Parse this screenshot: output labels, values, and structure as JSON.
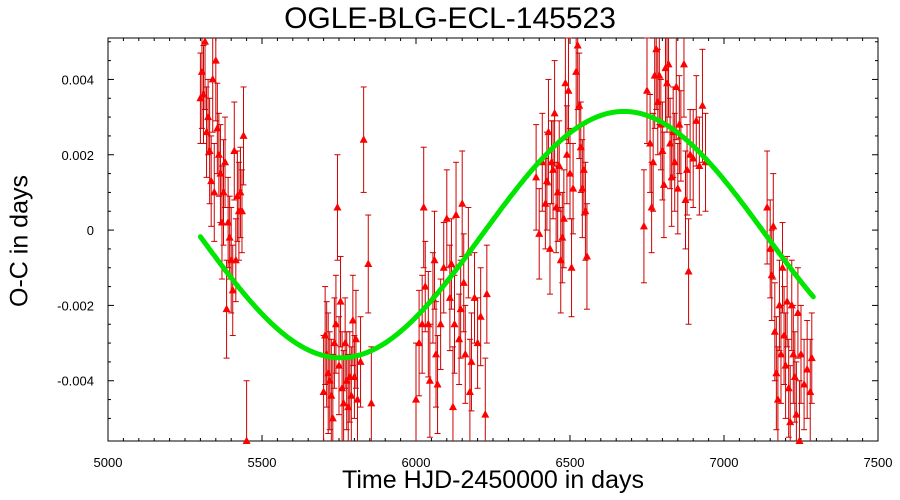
{
  "chart_data": {
    "type": "scatter",
    "title": "OGLE-BLG-ECL-145523",
    "xlabel": "Time HJD-2450000 in days",
    "ylabel": "O-C in days",
    "xlim": [
      5000,
      7500
    ],
    "ylim": [
      -0.0056,
      0.0051
    ],
    "xticks": [
      5000,
      5500,
      6000,
      6500,
      7000,
      7500
    ],
    "xtick_labels": [
      "5000",
      "5500",
      "6000",
      "6500",
      "7000",
      "7500"
    ],
    "yticks": [
      -0.004,
      -0.002,
      0,
      0.002,
      0.004
    ],
    "ytick_labels": [
      "-0.004",
      "-0.002",
      "0",
      "0.002",
      "0.004"
    ],
    "grid": false,
    "colors": {
      "points": "#ff0000",
      "errorbars": "#cc0000",
      "fit": "#00e600"
    },
    "series": [
      {
        "marker": "triangle",
        "points": [
          [
            5300,
            0.0035,
            0.0012
          ],
          [
            5305,
            0.0042,
            0.0015
          ],
          [
            5310,
            0.0036,
            0.0013
          ],
          [
            5315,
            0.005,
            0.0018
          ],
          [
            5320,
            0.0026,
            0.0012
          ],
          [
            5325,
            0.003,
            0.001
          ],
          [
            5330,
            0.0021,
            0.0014
          ],
          [
            5335,
            0.0013,
            0.0012
          ],
          [
            5340,
            0.004,
            0.0014
          ],
          [
            5345,
            0.001,
            0.0013
          ],
          [
            5350,
            0.0045,
            0.0016
          ],
          [
            5355,
            0.0027,
            0.0012
          ],
          [
            5360,
            0.002,
            0.0011
          ],
          [
            5365,
            0.0015,
            0.0013
          ],
          [
            5370,
            0.0002,
            0.0015
          ],
          [
            5375,
            0.001,
            0.0014
          ],
          [
            5380,
            0.0018,
            0.0012
          ],
          [
            5385,
            -0.0021,
            0.0013
          ],
          [
            5390,
            0.0002,
            0.0012
          ],
          [
            5395,
            -0.0002,
            0.0011
          ],
          [
            5400,
            -0.0008,
            0.0014
          ],
          [
            5405,
            -0.0016,
            0.0012
          ],
          [
            5410,
            0.0021,
            0.0013
          ],
          [
            5415,
            -0.0008,
            0.0011
          ],
          [
            5420,
            0.0009,
            0.0012
          ],
          [
            5425,
            0.0005,
            0.0013
          ],
          [
            5430,
            0.001,
            0.0012
          ],
          [
            5435,
            0.0005,
            0.0011
          ],
          [
            5440,
            0.0025,
            0.0013
          ],
          [
            5450,
            -0.0056,
            0.0016
          ],
          [
            5700,
            -0.0043,
            0.0015
          ],
          [
            5705,
            -0.0028,
            0.0013
          ],
          [
            5710,
            -0.0033,
            0.0014
          ],
          [
            5715,
            -0.0038,
            0.0016
          ],
          [
            5720,
            -0.004,
            0.0013
          ],
          [
            5725,
            -0.0044,
            0.0015
          ],
          [
            5730,
            -0.005,
            0.0017
          ],
          [
            5735,
            -0.003,
            0.0012
          ],
          [
            5740,
            -0.0025,
            0.0013
          ],
          [
            5745,
            0.0006,
            0.0014
          ],
          [
            5750,
            -0.0036,
            0.0013
          ],
          [
            5755,
            -0.0019,
            0.0012
          ],
          [
            5760,
            -0.0042,
            0.0015
          ],
          [
            5765,
            -0.0046,
            0.0014
          ],
          [
            5770,
            -0.003,
            0.0012
          ],
          [
            5775,
            -0.004,
            0.0013
          ],
          [
            5780,
            -0.0047,
            0.0014
          ],
          [
            5785,
            -0.0039,
            0.0012
          ],
          [
            5790,
            -0.0044,
            0.0013
          ],
          [
            5795,
            -0.0024,
            0.0012
          ],
          [
            5800,
            -0.0039,
            0.0011
          ],
          [
            5805,
            -0.0029,
            0.0013
          ],
          [
            5810,
            -0.0045,
            0.0012
          ],
          [
            5820,
            -0.0035,
            0.0012
          ],
          [
            5830,
            0.0024,
            0.0014
          ],
          [
            5845,
            -0.0009,
            0.0013
          ],
          [
            5855,
            -0.0046,
            0.0015
          ],
          [
            6000,
            -0.0045,
            0.0015
          ],
          [
            6010,
            -0.003,
            0.0014
          ],
          [
            6020,
            -0.0025,
            0.0013
          ],
          [
            6025,
            0.0006,
            0.0016
          ],
          [
            6030,
            -0.0015,
            0.0012
          ],
          [
            6040,
            -0.0025,
            0.0014
          ],
          [
            6045,
            -0.004,
            0.0015
          ],
          [
            6055,
            -0.0018,
            0.0012
          ],
          [
            6060,
            -0.0008,
            0.0013
          ],
          [
            6065,
            -0.0033,
            0.0014
          ],
          [
            6070,
            -0.0041,
            0.0013
          ],
          [
            6080,
            -0.0025,
            0.0012
          ],
          [
            6090,
            -0.001,
            0.0012
          ],
          [
            6100,
            0.0003,
            0.0013
          ],
          [
            6110,
            -0.0018,
            0.0014
          ],
          [
            6115,
            -0.0009,
            0.0012
          ],
          [
            6120,
            -0.0047,
            0.0016
          ],
          [
            6125,
            -0.0025,
            0.0013
          ],
          [
            6130,
            0.0004,
            0.0014
          ],
          [
            6140,
            -0.0029,
            0.0012
          ],
          [
            6145,
            -0.0021,
            0.0013
          ],
          [
            6150,
            0.0007,
            0.0014
          ],
          [
            6155,
            -0.0014,
            0.0013
          ],
          [
            6160,
            -0.0033,
            0.0013
          ],
          [
            6170,
            -0.0006,
            0.0012
          ],
          [
            6175,
            -0.0043,
            0.0014
          ],
          [
            6180,
            -0.0035,
            0.0013
          ],
          [
            6190,
            -0.0018,
            0.0012
          ],
          [
            6200,
            -0.003,
            0.0012
          ],
          [
            6210,
            -0.0023,
            0.0013
          ],
          [
            6225,
            -0.0049,
            0.0015
          ],
          [
            6230,
            -0.0017,
            0.0013
          ],
          [
            6390,
            0.0014,
            0.0014
          ],
          [
            6400,
            -0.0001,
            0.0012
          ],
          [
            6410,
            0.0018,
            0.0013
          ],
          [
            6420,
            0.0007,
            0.0012
          ],
          [
            6425,
            0.0013,
            0.0013
          ],
          [
            6430,
            0.0026,
            0.0014
          ],
          [
            6435,
            -0.0005,
            0.0012
          ],
          [
            6440,
            0.0018,
            0.0011
          ],
          [
            6445,
            0.0016,
            0.0013
          ],
          [
            6450,
            0.0031,
            0.0014
          ],
          [
            6455,
            0.0006,
            0.0012
          ],
          [
            6460,
            0.001,
            0.0013
          ],
          [
            6465,
            0.0017,
            0.0012
          ],
          [
            6470,
            -0.0008,
            0.0014
          ],
          [
            6475,
            -0.0002,
            0.0012
          ],
          [
            6480,
            0.0003,
            0.0013
          ],
          [
            6485,
            0.0039,
            0.0015
          ],
          [
            6490,
            0.002,
            0.0013
          ],
          [
            6495,
            0.0037,
            0.0014
          ],
          [
            6500,
            0.0015,
            0.0012
          ],
          [
            6505,
            -0.001,
            0.0013
          ],
          [
            6510,
            0.0011,
            0.0012
          ],
          [
            6520,
            0.0042,
            0.0015
          ],
          [
            6525,
            0.0049,
            0.0017
          ],
          [
            6530,
            0.0033,
            0.0014
          ],
          [
            6535,
            0.0022,
            0.0012
          ],
          [
            6540,
            0.0011,
            0.0013
          ],
          [
            6545,
            0.0016,
            0.0012
          ],
          [
            6550,
            0.0005,
            0.0013
          ],
          [
            6555,
            -0.0007,
            0.0014
          ],
          [
            6740,
            0.0001,
            0.0015
          ],
          [
            6750,
            0.0037,
            0.0014
          ],
          [
            6760,
            0.0023,
            0.0013
          ],
          [
            6765,
            0.0006,
            0.0012
          ],
          [
            6770,
            0.0018,
            0.0013
          ],
          [
            6775,
            0.0041,
            0.0014
          ],
          [
            6780,
            0.0048,
            0.0016
          ],
          [
            6785,
            0.0034,
            0.0014
          ],
          [
            6790,
            0.0041,
            0.0013
          ],
          [
            6795,
            0.0028,
            0.0012
          ],
          [
            6800,
            0.0021,
            0.0013
          ],
          [
            6805,
            0.0012,
            0.0014
          ],
          [
            6810,
            0.0043,
            0.0015
          ],
          [
            6815,
            0.0039,
            0.0013
          ],
          [
            6820,
            0.0044,
            0.0014
          ],
          [
            6825,
            0.0023,
            0.0012
          ],
          [
            6830,
            0.0014,
            0.0013
          ],
          [
            6835,
            0.0026,
            0.0012
          ],
          [
            6840,
            0.0018,
            0.0013
          ],
          [
            6845,
            0.0038,
            0.0014
          ],
          [
            6850,
            0.0011,
            0.0012
          ],
          [
            6855,
            0.0028,
            0.0013
          ],
          [
            6860,
            0.0025,
            0.0012
          ],
          [
            6870,
            0.0044,
            0.0014
          ],
          [
            6875,
            0.0008,
            0.0013
          ],
          [
            6880,
            0.0016,
            0.0012
          ],
          [
            6885,
            -0.0011,
            0.0014
          ],
          [
            6890,
            0.002,
            0.0012
          ],
          [
            6900,
            0.0019,
            0.0013
          ],
          [
            6910,
            0.0029,
            0.0012
          ],
          [
            6920,
            0.0017,
            0.0013
          ],
          [
            6930,
            0.0033,
            0.0015
          ],
          [
            6940,
            0.0018,
            0.0013
          ],
          [
            7140,
            0.0006,
            0.0015
          ],
          [
            7150,
            -0.0005,
            0.0013
          ],
          [
            7155,
            -0.0012,
            0.0012
          ],
          [
            7160,
            0.0001,
            0.0014
          ],
          [
            7165,
            -0.0027,
            0.0013
          ],
          [
            7170,
            -0.0038,
            0.0015
          ],
          [
            7175,
            -0.0045,
            0.0014
          ],
          [
            7180,
            -0.002,
            0.0012
          ],
          [
            7185,
            -0.0033,
            0.0013
          ],
          [
            7190,
            -0.001,
            0.0012
          ],
          [
            7195,
            -0.0028,
            0.0013
          ],
          [
            7200,
            -0.0036,
            0.0014
          ],
          [
            7205,
            -0.0019,
            0.0012
          ],
          [
            7210,
            -0.0042,
            0.0013
          ],
          [
            7215,
            -0.0051,
            0.0015
          ],
          [
            7220,
            -0.002,
            0.0012
          ],
          [
            7225,
            -0.0033,
            0.0013
          ],
          [
            7230,
            -0.0039,
            0.0012
          ],
          [
            7235,
            -0.0049,
            0.0014
          ],
          [
            7240,
            -0.0022,
            0.0012
          ],
          [
            7245,
            -0.0056,
            0.0016
          ],
          [
            7250,
            -0.0033,
            0.0013
          ],
          [
            7260,
            -0.0041,
            0.0012
          ],
          [
            7270,
            -0.0037,
            0.0013
          ],
          [
            7280,
            -0.0043,
            0.0014
          ],
          [
            7285,
            -0.0034,
            0.0012
          ]
        ]
      }
    ],
    "fit": {
      "type": "sinusoid",
      "x_range": [
        5300,
        7290
      ],
      "offset": -0.00012,
      "amplitude": 0.00327,
      "period": 1840,
      "peak_x": 6675
    }
  }
}
